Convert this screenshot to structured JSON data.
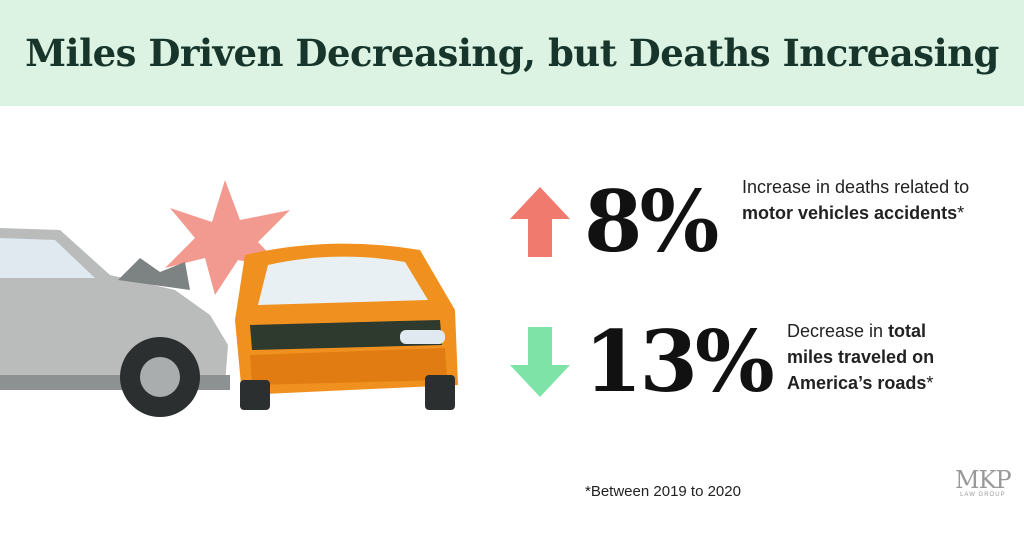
{
  "header": {
    "title": "Miles Driven Decreasing, but Deaths Increasing"
  },
  "stats": [
    {
      "value": "8%",
      "direction": "up",
      "color": "#f07a6e",
      "lead": "Increase in deaths related to",
      "emphasis": "motor vehicles accidents",
      "tail": "*"
    },
    {
      "value": "13%",
      "direction": "down",
      "color": "#7ee3a6",
      "lead": "Decrease in",
      "emphasis": "total miles traveled on America’s roads",
      "tail": "*"
    }
  ],
  "footnote": "*Between 2019 to 2020",
  "logo": {
    "mark": "MKP",
    "subtitle": "LAW GROUP"
  }
}
